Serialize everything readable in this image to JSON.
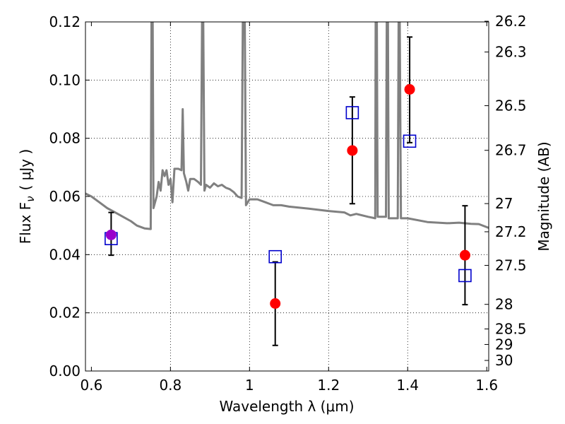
{
  "chart_data": {
    "type": "scatter",
    "xlabel": "Wavelength  λ (μm)",
    "ylabel": "Flux  F",
    "ylabel_sub": "ν",
    "ylabel_unit": "( μJy )",
    "ylabel_right": "Magnitude (AB)",
    "xlim": [
      0.585,
      1.605
    ],
    "ylim": [
      0.0,
      0.12
    ],
    "grid": true,
    "x_ticks": [
      {
        "value": 0.6,
        "label": "0.6"
      },
      {
        "value": 0.8,
        "label": "0.8"
      },
      {
        "value": 1.0,
        "label": "1"
      },
      {
        "value": 1.2,
        "label": "1.2"
      },
      {
        "value": 1.4,
        "label": "1.4"
      },
      {
        "value": 1.6,
        "label": "1.6"
      }
    ],
    "y_ticks": [
      {
        "value": 0.0,
        "label": "0.00"
      },
      {
        "value": 0.02,
        "label": "0.02"
      },
      {
        "value": 0.04,
        "label": "0.04"
      },
      {
        "value": 0.06,
        "label": "0.06"
      },
      {
        "value": 0.08,
        "label": "0.08"
      },
      {
        "value": 0.1,
        "label": "0.10"
      },
      {
        "value": 0.12,
        "label": "0.12"
      }
    ],
    "mag_ticks": [
      {
        "mag": 26.2,
        "label": "26.2"
      },
      {
        "mag": 26.3,
        "label": "26.3"
      },
      {
        "mag": 26.5,
        "label": "26.5"
      },
      {
        "mag": 26.7,
        "label": "26.7"
      },
      {
        "mag": 27.0,
        "label": "27"
      },
      {
        "mag": 27.2,
        "label": "27.2"
      },
      {
        "mag": 27.5,
        "label": "27.5"
      },
      {
        "mag": 28.0,
        "label": "28"
      },
      {
        "mag": 28.5,
        "label": "28.5"
      },
      {
        "mag": 29.0,
        "label": "29"
      },
      {
        "mag": 30.0,
        "label": "30"
      }
    ],
    "observed": [
      {
        "x": 0.65,
        "y": 0.0468,
        "err_low": 0.0398,
        "err_high": 0.0545,
        "color": "#9900cc"
      },
      {
        "x": 1.065,
        "y": 0.0232,
        "err_low": 0.0088,
        "err_high": 0.0375,
        "color": "#ff0000"
      },
      {
        "x": 1.26,
        "y": 0.0758,
        "err_low": 0.0575,
        "err_high": 0.0942,
        "color": "#ff0000"
      },
      {
        "x": 1.405,
        "y": 0.0968,
        "err_low": 0.0785,
        "err_high": 0.1148,
        "color": "#ff0000"
      },
      {
        "x": 1.545,
        "y": 0.0398,
        "err_low": 0.0228,
        "err_high": 0.0568,
        "color": "#ff0000"
      }
    ],
    "model_points": [
      {
        "x": 0.65,
        "y": 0.0455
      },
      {
        "x": 1.065,
        "y": 0.0393
      },
      {
        "x": 1.26,
        "y": 0.0888
      },
      {
        "x": 1.405,
        "y": 0.079
      },
      {
        "x": 1.545,
        "y": 0.0328
      }
    ],
    "spectrum": {
      "color": "#808080",
      "points": [
        [
          0.585,
          0.061
        ],
        [
          0.6,
          0.06
        ],
        [
          0.62,
          0.058
        ],
        [
          0.64,
          0.056
        ],
        [
          0.66,
          0.0545
        ],
        [
          0.68,
          0.053
        ],
        [
          0.7,
          0.0515
        ],
        [
          0.715,
          0.05
        ],
        [
          0.735,
          0.049
        ],
        [
          0.75,
          0.0488
        ],
        [
          0.752,
          0.12
        ],
        [
          0.755,
          0.12
        ],
        [
          0.757,
          0.056
        ],
        [
          0.765,
          0.06
        ],
        [
          0.77,
          0.065
        ],
        [
          0.775,
          0.062
        ],
        [
          0.78,
          0.069
        ],
        [
          0.785,
          0.067
        ],
        [
          0.79,
          0.069
        ],
        [
          0.795,
          0.064
        ],
        [
          0.8,
          0.066
        ],
        [
          0.805,
          0.058
        ],
        [
          0.81,
          0.0695
        ],
        [
          0.82,
          0.0695
        ],
        [
          0.828,
          0.069
        ],
        [
          0.831,
          0.09
        ],
        [
          0.834,
          0.068
        ],
        [
          0.84,
          0.065
        ],
        [
          0.845,
          0.062
        ],
        [
          0.85,
          0.066
        ],
        [
          0.86,
          0.066
        ],
        [
          0.87,
          0.065
        ],
        [
          0.877,
          0.064
        ],
        [
          0.88,
          0.12
        ],
        [
          0.883,
          0.12
        ],
        [
          0.886,
          0.062
        ],
        [
          0.89,
          0.064
        ],
        [
          0.9,
          0.063
        ],
        [
          0.91,
          0.0645
        ],
        [
          0.92,
          0.0635
        ],
        [
          0.93,
          0.064
        ],
        [
          0.94,
          0.063
        ],
        [
          0.95,
          0.0625
        ],
        [
          0.96,
          0.0615
        ],
        [
          0.97,
          0.06
        ],
        [
          0.98,
          0.0595
        ],
        [
          0.983,
          0.12
        ],
        [
          0.988,
          0.12
        ],
        [
          0.991,
          0.057
        ],
        [
          1.0,
          0.059
        ],
        [
          1.02,
          0.059
        ],
        [
          1.04,
          0.058
        ],
        [
          1.06,
          0.057
        ],
        [
          1.08,
          0.057
        ],
        [
          1.1,
          0.0565
        ],
        [
          1.15,
          0.0558
        ],
        [
          1.2,
          0.055
        ],
        [
          1.24,
          0.0545
        ],
        [
          1.255,
          0.0535
        ],
        [
          1.27,
          0.054
        ],
        [
          1.3,
          0.053
        ],
        [
          1.318,
          0.0525
        ],
        [
          1.319,
          0.12
        ],
        [
          1.322,
          0.12
        ],
        [
          1.324,
          0.053
        ],
        [
          1.345,
          0.053
        ],
        [
          1.347,
          0.12
        ],
        [
          1.35,
          0.12
        ],
        [
          1.352,
          0.0525
        ],
        [
          1.375,
          0.0525
        ],
        [
          1.377,
          0.12
        ],
        [
          1.38,
          0.12
        ],
        [
          1.383,
          0.0525
        ],
        [
          1.4,
          0.0525
        ],
        [
          1.45,
          0.0512
        ],
        [
          1.5,
          0.0508
        ],
        [
          1.53,
          0.051
        ],
        [
          1.56,
          0.0506
        ],
        [
          1.58,
          0.0505
        ],
        [
          1.605,
          0.0492
        ]
      ]
    }
  }
}
